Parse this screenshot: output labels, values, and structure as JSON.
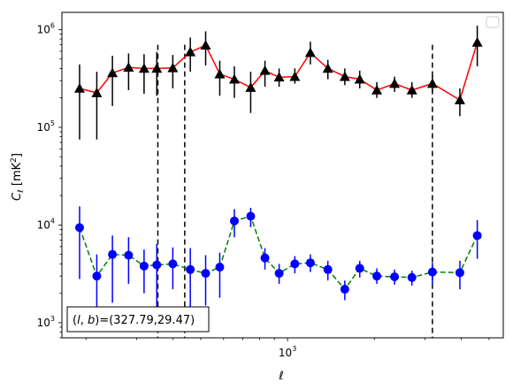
{
  "chart_data": {
    "type": "scatter",
    "xscale": "log",
    "yscale": "log",
    "xlim": [
      165,
      5600
    ],
    "ylim": [
      700,
      1500000
    ],
    "xlabel": "ℓ",
    "ylabel": "C_ℓ  [mK²]",
    "ylabel_parts": {
      "symbol": "C",
      "subscript": "ℓ",
      "unit_open": " [mK",
      "unit_power": "2",
      "unit_close": "]"
    },
    "x_tick_labels": [
      {
        "value": 1000,
        "base": "10",
        "exp": "3"
      }
    ],
    "y_tick_labels": [
      {
        "value": 1000,
        "base": "10",
        "exp": "3"
      },
      {
        "value": 10000,
        "base": "10",
        "exp": "4"
      },
      {
        "value": 100000,
        "base": "10",
        "exp": "5"
      },
      {
        "value": 1000000,
        "base": "10",
        "exp": "6"
      }
    ],
    "legend": {
      "placement": "top-right",
      "entries": []
    },
    "series": [
      {
        "marker": "triangle",
        "line_style": "solid",
        "line_color": "#ff0000",
        "marker_color": "#000000",
        "errorbar_color": "#000000",
        "points": [
          {
            "x": 190,
            "y": 250000,
            "lo": 75000,
            "hi": 440000
          },
          {
            "x": 218,
            "y": 225000,
            "lo": 75000,
            "hi": 370000
          },
          {
            "x": 247,
            "y": 360000,
            "lo": 165000,
            "hi": 540000
          },
          {
            "x": 281,
            "y": 410000,
            "lo": 240000,
            "hi": 570000
          },
          {
            "x": 318,
            "y": 400000,
            "lo": 220000,
            "hi": 560000
          },
          {
            "x": 352,
            "y": 400000,
            "lo": 210000,
            "hi": 590000
          },
          {
            "x": 400,
            "y": 405000,
            "lo": 250000,
            "hi": 550000
          },
          {
            "x": 460,
            "y": 590000,
            "lo": 370000,
            "hi": 830000
          },
          {
            "x": 520,
            "y": 690000,
            "lo": 430000,
            "hi": 960000
          },
          {
            "x": 582,
            "y": 350000,
            "lo": 210000,
            "hi": 480000
          },
          {
            "x": 654,
            "y": 310000,
            "lo": 200000,
            "hi": 420000
          },
          {
            "x": 745,
            "y": 255000,
            "lo": 140000,
            "hi": 370000
          },
          {
            "x": 835,
            "y": 380000,
            "lo": 260000,
            "hi": 480000
          },
          {
            "x": 935,
            "y": 325000,
            "lo": 260000,
            "hi": 400000
          },
          {
            "x": 1060,
            "y": 330000,
            "lo": 280000,
            "hi": 400000
          },
          {
            "x": 1200,
            "y": 580000,
            "lo": 440000,
            "hi": 750000
          },
          {
            "x": 1380,
            "y": 400000,
            "lo": 310000,
            "hi": 490000
          },
          {
            "x": 1580,
            "y": 330000,
            "lo": 270000,
            "hi": 400000
          },
          {
            "x": 1780,
            "y": 310000,
            "lo": 250000,
            "hi": 380000
          },
          {
            "x": 2040,
            "y": 240000,
            "lo": 200000,
            "hi": 290000
          },
          {
            "x": 2350,
            "y": 280000,
            "lo": 230000,
            "hi": 330000
          },
          {
            "x": 2700,
            "y": 240000,
            "lo": 200000,
            "hi": 290000
          },
          {
            "x": 3180,
            "y": 280000,
            "lo": 230000,
            "hi": 340000
          },
          {
            "x": 3960,
            "y": 190000,
            "lo": 130000,
            "hi": 250000
          },
          {
            "x": 4550,
            "y": 740000,
            "lo": 420000,
            "hi": 1100000
          }
        ]
      },
      {
        "marker": "circle",
        "line_style": "dashed",
        "line_color": "#008000",
        "marker_color": "#0000ff",
        "errorbar_color": "#0000ff",
        "points": [
          {
            "x": 190,
            "y": 9400,
            "lo": 2800,
            "hi": 15500
          },
          {
            "x": 218,
            "y": 3000,
            "lo": 1000,
            "hi": 5000
          },
          {
            "x": 247,
            "y": 5000,
            "lo": 1600,
            "hi": 7800
          },
          {
            "x": 281,
            "y": 4900,
            "lo": 2500,
            "hi": 7500
          },
          {
            "x": 318,
            "y": 3800,
            "lo": 2000,
            "hi": 5600
          },
          {
            "x": 352,
            "y": 3900,
            "lo": 1400,
            "hi": 6400
          },
          {
            "x": 400,
            "y": 4000,
            "lo": 2200,
            "hi": 5900
          },
          {
            "x": 460,
            "y": 3500,
            "lo": 1200,
            "hi": 5800
          },
          {
            "x": 520,
            "y": 3200,
            "lo": 1500,
            "hi": 4900
          },
          {
            "x": 582,
            "y": 3700,
            "lo": 1800,
            "hi": 5200
          },
          {
            "x": 654,
            "y": 11000,
            "lo": 7500,
            "hi": 14500
          },
          {
            "x": 745,
            "y": 12300,
            "lo": 9500,
            "hi": 15000
          },
          {
            "x": 835,
            "y": 4600,
            "lo": 3500,
            "hi": 5800
          },
          {
            "x": 935,
            "y": 3200,
            "lo": 2500,
            "hi": 4000
          },
          {
            "x": 1060,
            "y": 4000,
            "lo": 3200,
            "hi": 4800
          },
          {
            "x": 1200,
            "y": 4100,
            "lo": 3300,
            "hi": 5000
          },
          {
            "x": 1380,
            "y": 3500,
            "lo": 2700,
            "hi": 4300
          },
          {
            "x": 1580,
            "y": 2200,
            "lo": 1700,
            "hi": 2700
          },
          {
            "x": 1780,
            "y": 3600,
            "lo": 2900,
            "hi": 4300
          },
          {
            "x": 2040,
            "y": 3000,
            "lo": 2500,
            "hi": 3600
          },
          {
            "x": 2350,
            "y": 2950,
            "lo": 2450,
            "hi": 3500
          },
          {
            "x": 2700,
            "y": 2900,
            "lo": 2400,
            "hi": 3400
          },
          {
            "x": 3180,
            "y": 3300,
            "lo": 2500,
            "hi": 4100
          },
          {
            "x": 3960,
            "y": 3250,
            "lo": 2200,
            "hi": 4300
          },
          {
            "x": 4550,
            "y": 7800,
            "lo": 4500,
            "hi": 11200
          }
        ]
      }
    ],
    "vlines": [
      {
        "x": 355,
        "style": "dashed",
        "color": "#000000",
        "ymax": 700000
      },
      {
        "x": 440,
        "style": "dashed",
        "color": "#000000",
        "ymax": 700000
      },
      {
        "x": 3180,
        "style": "dashed",
        "color": "#000000",
        "ymax": 700000
      }
    ],
    "annotation": {
      "text": "(l, b)=(327.79,29.47)",
      "var_l": "l",
      "var_b": "b",
      "prefix": "(",
      "mid": ", ",
      "suffix": ")=(327.79,29.47)",
      "placement": "bottom-left"
    }
  }
}
